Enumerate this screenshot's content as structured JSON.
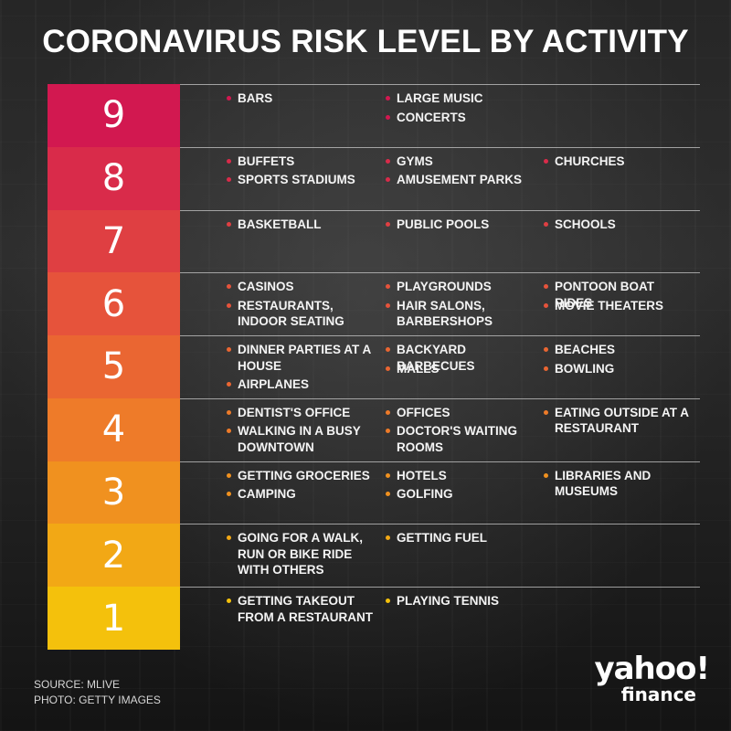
{
  "title": "CORONAVIRUS RISK LEVEL BY ACTIVITY",
  "levels": [
    {
      "number": "9",
      "color": "#d21850",
      "items": [
        [
          "BARS"
        ],
        [
          "LARGE MUSIC",
          "CONCERTS"
        ],
        []
      ]
    },
    {
      "number": "8",
      "color": "#d92b4a",
      "items": [
        [
          "BUFFETS",
          "SPORTS STADIUMS"
        ],
        [
          "GYMS",
          "AMUSEMENT PARKS"
        ],
        [
          "CHURCHES"
        ]
      ]
    },
    {
      "number": "7",
      "color": "#df3f42",
      "items": [
        [
          "BASKETBALL"
        ],
        [
          "PUBLIC POOLS"
        ],
        [
          "SCHOOLS"
        ]
      ]
    },
    {
      "number": "6",
      "color": "#e6533b",
      "items": [
        [
          "CASINOS",
          "RESTAURANTS, INDOOR SEATING"
        ],
        [
          "PLAYGROUNDS",
          "HAIR SALONS, BARBERSHOPS"
        ],
        [
          "PONTOON BOAT RIDES",
          "MOVIE THEATERS"
        ]
      ]
    },
    {
      "number": "5",
      "color": "#ea6632",
      "items": [
        [
          "DINNER PARTIES AT A HOUSE",
          "AIRPLANES"
        ],
        [
          "BACKYARD BARBECUES",
          "MALLS"
        ],
        [
          "BEACHES",
          "BOWLING"
        ]
      ]
    },
    {
      "number": "4",
      "color": "#ee7b29",
      "items": [
        [
          "DENTIST'S OFFICE",
          "WALKING IN A BUSY DOWNTOWN"
        ],
        [
          "OFFICES",
          "DOCTOR'S WAITING ROOMS"
        ],
        [
          "EATING OUTSIDE AT A RESTAURANT"
        ]
      ]
    },
    {
      "number": "3",
      "color": "#f0911f",
      "items": [
        [
          "GETTING GROCERIES",
          "CAMPING"
        ],
        [
          "HOTELS",
          "GOLFING"
        ],
        [
          "LIBRARIES AND MUSEUMS"
        ]
      ]
    },
    {
      "number": "2",
      "color": "#f2a815",
      "items": [
        [
          "GOING FOR A WALK, RUN OR BIKE RIDE WITH OTHERS"
        ],
        [
          "GETTING FUEL"
        ],
        []
      ]
    },
    {
      "number": "1",
      "color": "#f4c10c",
      "items": [
        [
          "GETTING TAKEOUT FROM A RESTAURANT"
        ],
        [
          "PLAYING TENNIS"
        ],
        []
      ]
    }
  ],
  "source": {
    "source_line": "SOURCE:  MLIVE",
    "photo_line": "PHOTO: GETTY IMAGES"
  },
  "logo": {
    "yahoo": "yahoo!",
    "finance": "finance"
  }
}
